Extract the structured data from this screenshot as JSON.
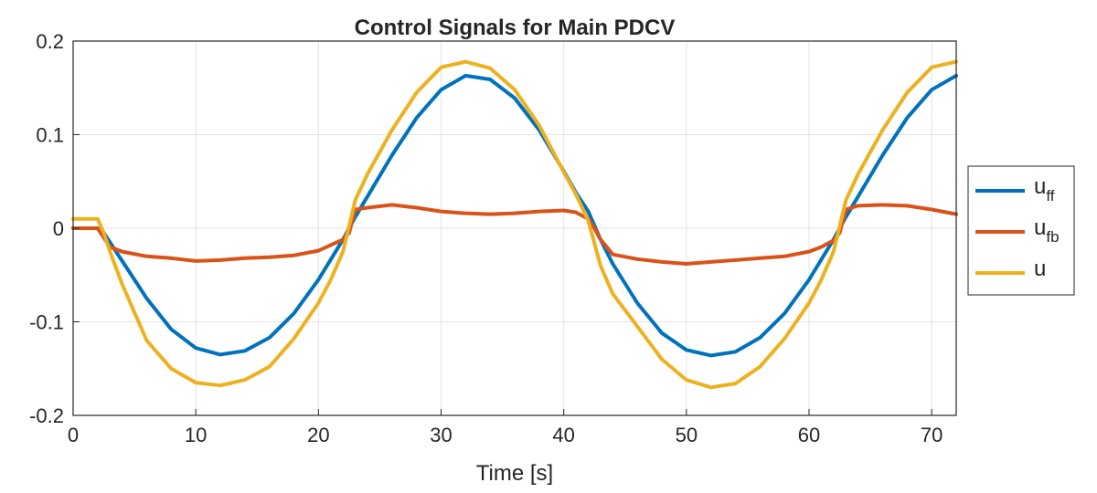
{
  "chart_data": {
    "type": "line",
    "title": "Control Signals for Main PDCV",
    "xlabel": "Time [s]",
    "ylabel": "",
    "xlim": [
      0,
      72
    ],
    "ylim": [
      -0.2,
      0.2
    ],
    "xticks": [
      0,
      10,
      20,
      30,
      40,
      50,
      60,
      70
    ],
    "xtick_labels": [
      "0",
      "10",
      "20",
      "30",
      "40",
      "50",
      "60",
      "70"
    ],
    "yticks": [
      -0.2,
      -0.1,
      0,
      0.1,
      0.2
    ],
    "ytick_labels": [
      "-0.2",
      "-0.1",
      "0",
      "0.1",
      "0.2"
    ],
    "grid": true,
    "legend_position": "right, outside plot area",
    "series": [
      {
        "name": "u_ff",
        "legend_main": "u",
        "legend_sub": "ff",
        "color": "#0072BD",
        "x": [
          0,
          2,
          2.5,
          4,
          6,
          8,
          10,
          12,
          14,
          16,
          18,
          20,
          22,
          23,
          24,
          26,
          28,
          30,
          32,
          34,
          36,
          38,
          40,
          41,
          42,
          43,
          44,
          46,
          48,
          50,
          52,
          54,
          56,
          58,
          60,
          62,
          63,
          64,
          66,
          68,
          70,
          72
        ],
        "y": [
          0.0,
          0.0,
          -0.005,
          -0.035,
          -0.075,
          -0.108,
          -0.128,
          -0.135,
          -0.131,
          -0.117,
          -0.091,
          -0.055,
          -0.012,
          0.012,
          0.034,
          0.078,
          0.118,
          0.148,
          0.163,
          0.159,
          0.139,
          0.105,
          0.061,
          0.038,
          0.018,
          -0.012,
          -0.038,
          -0.08,
          -0.112,
          -0.13,
          -0.136,
          -0.132,
          -0.117,
          -0.091,
          -0.055,
          -0.012,
          0.012,
          0.034,
          0.078,
          0.118,
          0.148,
          0.163
        ]
      },
      {
        "name": "u_fb",
        "legend_main": "u",
        "legend_sub": "fb",
        "color": "#D95319",
        "x": [
          0,
          2,
          2.5,
          3,
          4,
          6,
          8,
          10,
          12,
          14,
          16,
          18,
          20,
          21,
          22,
          22.5,
          23,
          24,
          26,
          28,
          30,
          32,
          34,
          36,
          38,
          40,
          41,
          42,
          42.5,
          43,
          44,
          46,
          48,
          50,
          52,
          54,
          56,
          58,
          60,
          61,
          62,
          62.5,
          63,
          64,
          66,
          68,
          70,
          72
        ],
        "y": [
          0.0,
          0.0,
          -0.01,
          -0.02,
          -0.025,
          -0.03,
          -0.032,
          -0.035,
          -0.034,
          -0.032,
          -0.031,
          -0.029,
          -0.024,
          -0.018,
          -0.012,
          -0.005,
          0.02,
          0.022,
          0.025,
          0.022,
          0.018,
          0.016,
          0.015,
          0.016,
          0.018,
          0.019,
          0.017,
          0.01,
          0.0,
          -0.012,
          -0.028,
          -0.033,
          -0.036,
          -0.038,
          -0.036,
          -0.034,
          -0.032,
          -0.03,
          -0.025,
          -0.02,
          -0.013,
          -0.005,
          0.02,
          0.024,
          0.025,
          0.024,
          0.02,
          0.015
        ]
      },
      {
        "name": "u",
        "legend_main": "u",
        "legend_sub": "",
        "color": "#EDB120",
        "x": [
          0,
          2,
          2.5,
          3,
          4,
          5,
          6,
          8,
          10,
          12,
          14,
          16,
          18,
          20,
          21,
          22,
          23,
          24,
          26,
          28,
          30,
          32,
          34,
          36,
          38,
          40,
          41,
          42,
          43,
          44,
          46,
          48,
          50,
          52,
          54,
          56,
          58,
          60,
          61,
          62,
          63,
          64,
          66,
          68,
          70,
          72
        ],
        "y": [
          0.01,
          0.01,
          -0.005,
          -0.025,
          -0.06,
          -0.09,
          -0.12,
          -0.15,
          -0.165,
          -0.168,
          -0.162,
          -0.148,
          -0.118,
          -0.08,
          -0.055,
          -0.025,
          0.03,
          0.058,
          0.105,
          0.145,
          0.172,
          0.178,
          0.171,
          0.148,
          0.11,
          0.06,
          0.036,
          0.008,
          -0.04,
          -0.07,
          -0.105,
          -0.14,
          -0.162,
          -0.17,
          -0.166,
          -0.148,
          -0.118,
          -0.08,
          -0.055,
          -0.025,
          0.03,
          0.058,
          0.105,
          0.145,
          0.172,
          0.178
        ]
      }
    ]
  }
}
